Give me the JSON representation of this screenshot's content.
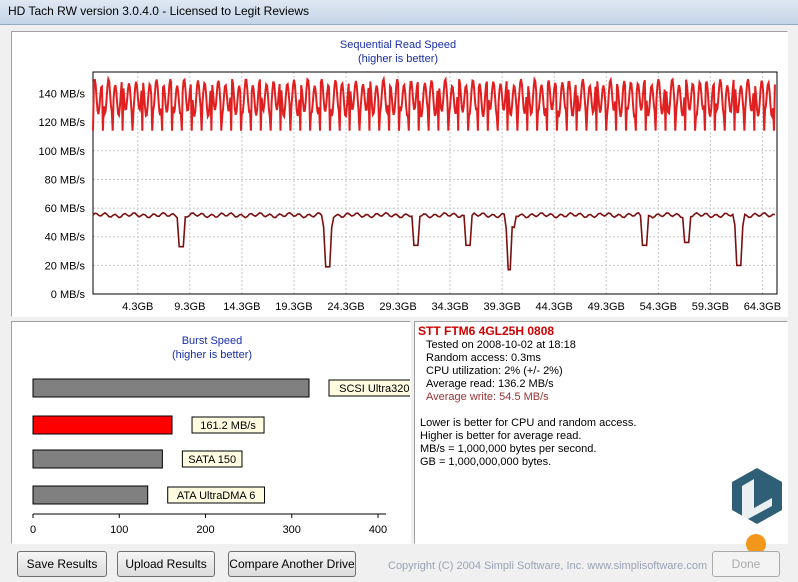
{
  "window": {
    "title": "HD Tach RW version 3.0.4.0 - Licensed to Legit Reviews"
  },
  "seq_chart": {
    "title": "Sequential Read Speed",
    "subtitle": "(higher is better)",
    "y_ticks": [
      "0 MB/s",
      "20 MB/s",
      "40 MB/s",
      "60 MB/s",
      "80 MB/s",
      "100 MB/s",
      "120 MB/s",
      "140 MB/s"
    ],
    "x_ticks": [
      "4.3GB",
      "9.3GB",
      "14.3GB",
      "19.3GB",
      "24.3GB",
      "29.3GB",
      "34.3GB",
      "39.3GB",
      "44.3GB",
      "49.3GB",
      "54.3GB",
      "59.3GB",
      "64.3GB"
    ]
  },
  "chart_data": [
    {
      "type": "line",
      "title": "Sequential Read Speed",
      "subtitle": "(higher is better)",
      "xlabel": "",
      "ylabel": "",
      "x_range_gb": [
        0,
        64.3
      ],
      "ylim": [
        0,
        160
      ],
      "grid": true,
      "series": [
        {
          "color": "#e02020",
          "values_desc": [],
          "min": 112,
          "max": 150,
          "mean": 136.2,
          "pattern": "oscillating"
        },
        {
          "color": "#7a1010",
          "baseline": 55,
          "dips": [
            {
              "x_gb": 8.5,
              "y": 33
            },
            {
              "x_gb": 22.5,
              "y": 19
            },
            {
              "x_gb": 31.0,
              "y": 34
            },
            {
              "x_gb": 36.0,
              "y": 34
            },
            {
              "x_gb": 40.0,
              "y": 17
            },
            {
              "x_gb": 53.0,
              "y": 34
            },
            {
              "x_gb": 57.0,
              "y": 36
            },
            {
              "x_gb": 62.0,
              "y": 20
            }
          ]
        }
      ]
    },
    {
      "type": "bar",
      "title": "Burst Speed",
      "subtitle": "(higher is better)",
      "categories": [
        "SCSI Ultra320",
        "161.2 MB/s",
        "SATA 150",
        "ATA UltraDMA 6"
      ],
      "values": [
        320,
        161.2,
        150,
        133
      ],
      "colors": [
        "#808080",
        "#ff0000",
        "#808080",
        "#808080"
      ],
      "x_ticks": [
        "0",
        "100",
        "200",
        "300",
        "400"
      ],
      "xlim": [
        0,
        450
      ]
    }
  ],
  "info": {
    "drive_name": "STT FTM6 4GL25H 0808",
    "tested_on": "Tested on 2008-10-02 at 18:18",
    "random_access": "Random access: 0.3ms",
    "cpu": "CPU utilization: 2% (+/- 2%)",
    "avg_read": "Average read: 136.2 MB/s",
    "avg_write": "Average write: 54.5 MB/s",
    "note1": "Lower is better for CPU and random access.",
    "note2": "Higher is better for average read.",
    "note3": "MB/s = 1,000,000 bytes per second.",
    "note4": "GB = 1,000,000,000 bytes."
  },
  "buttons": {
    "save": "Save Results",
    "upload": "Upload Results",
    "compare": "Compare Another Drive",
    "done": "Done"
  },
  "copyright": "Copyright (C) 2004 Simpli Software, Inc. www.simplisoftware.com",
  "colors": {
    "read_line": "#e02020",
    "write_line": "#7a1010",
    "title_blue": "#1a2ea8",
    "drive_red": "#cc0000",
    "write_red": "#993333"
  }
}
